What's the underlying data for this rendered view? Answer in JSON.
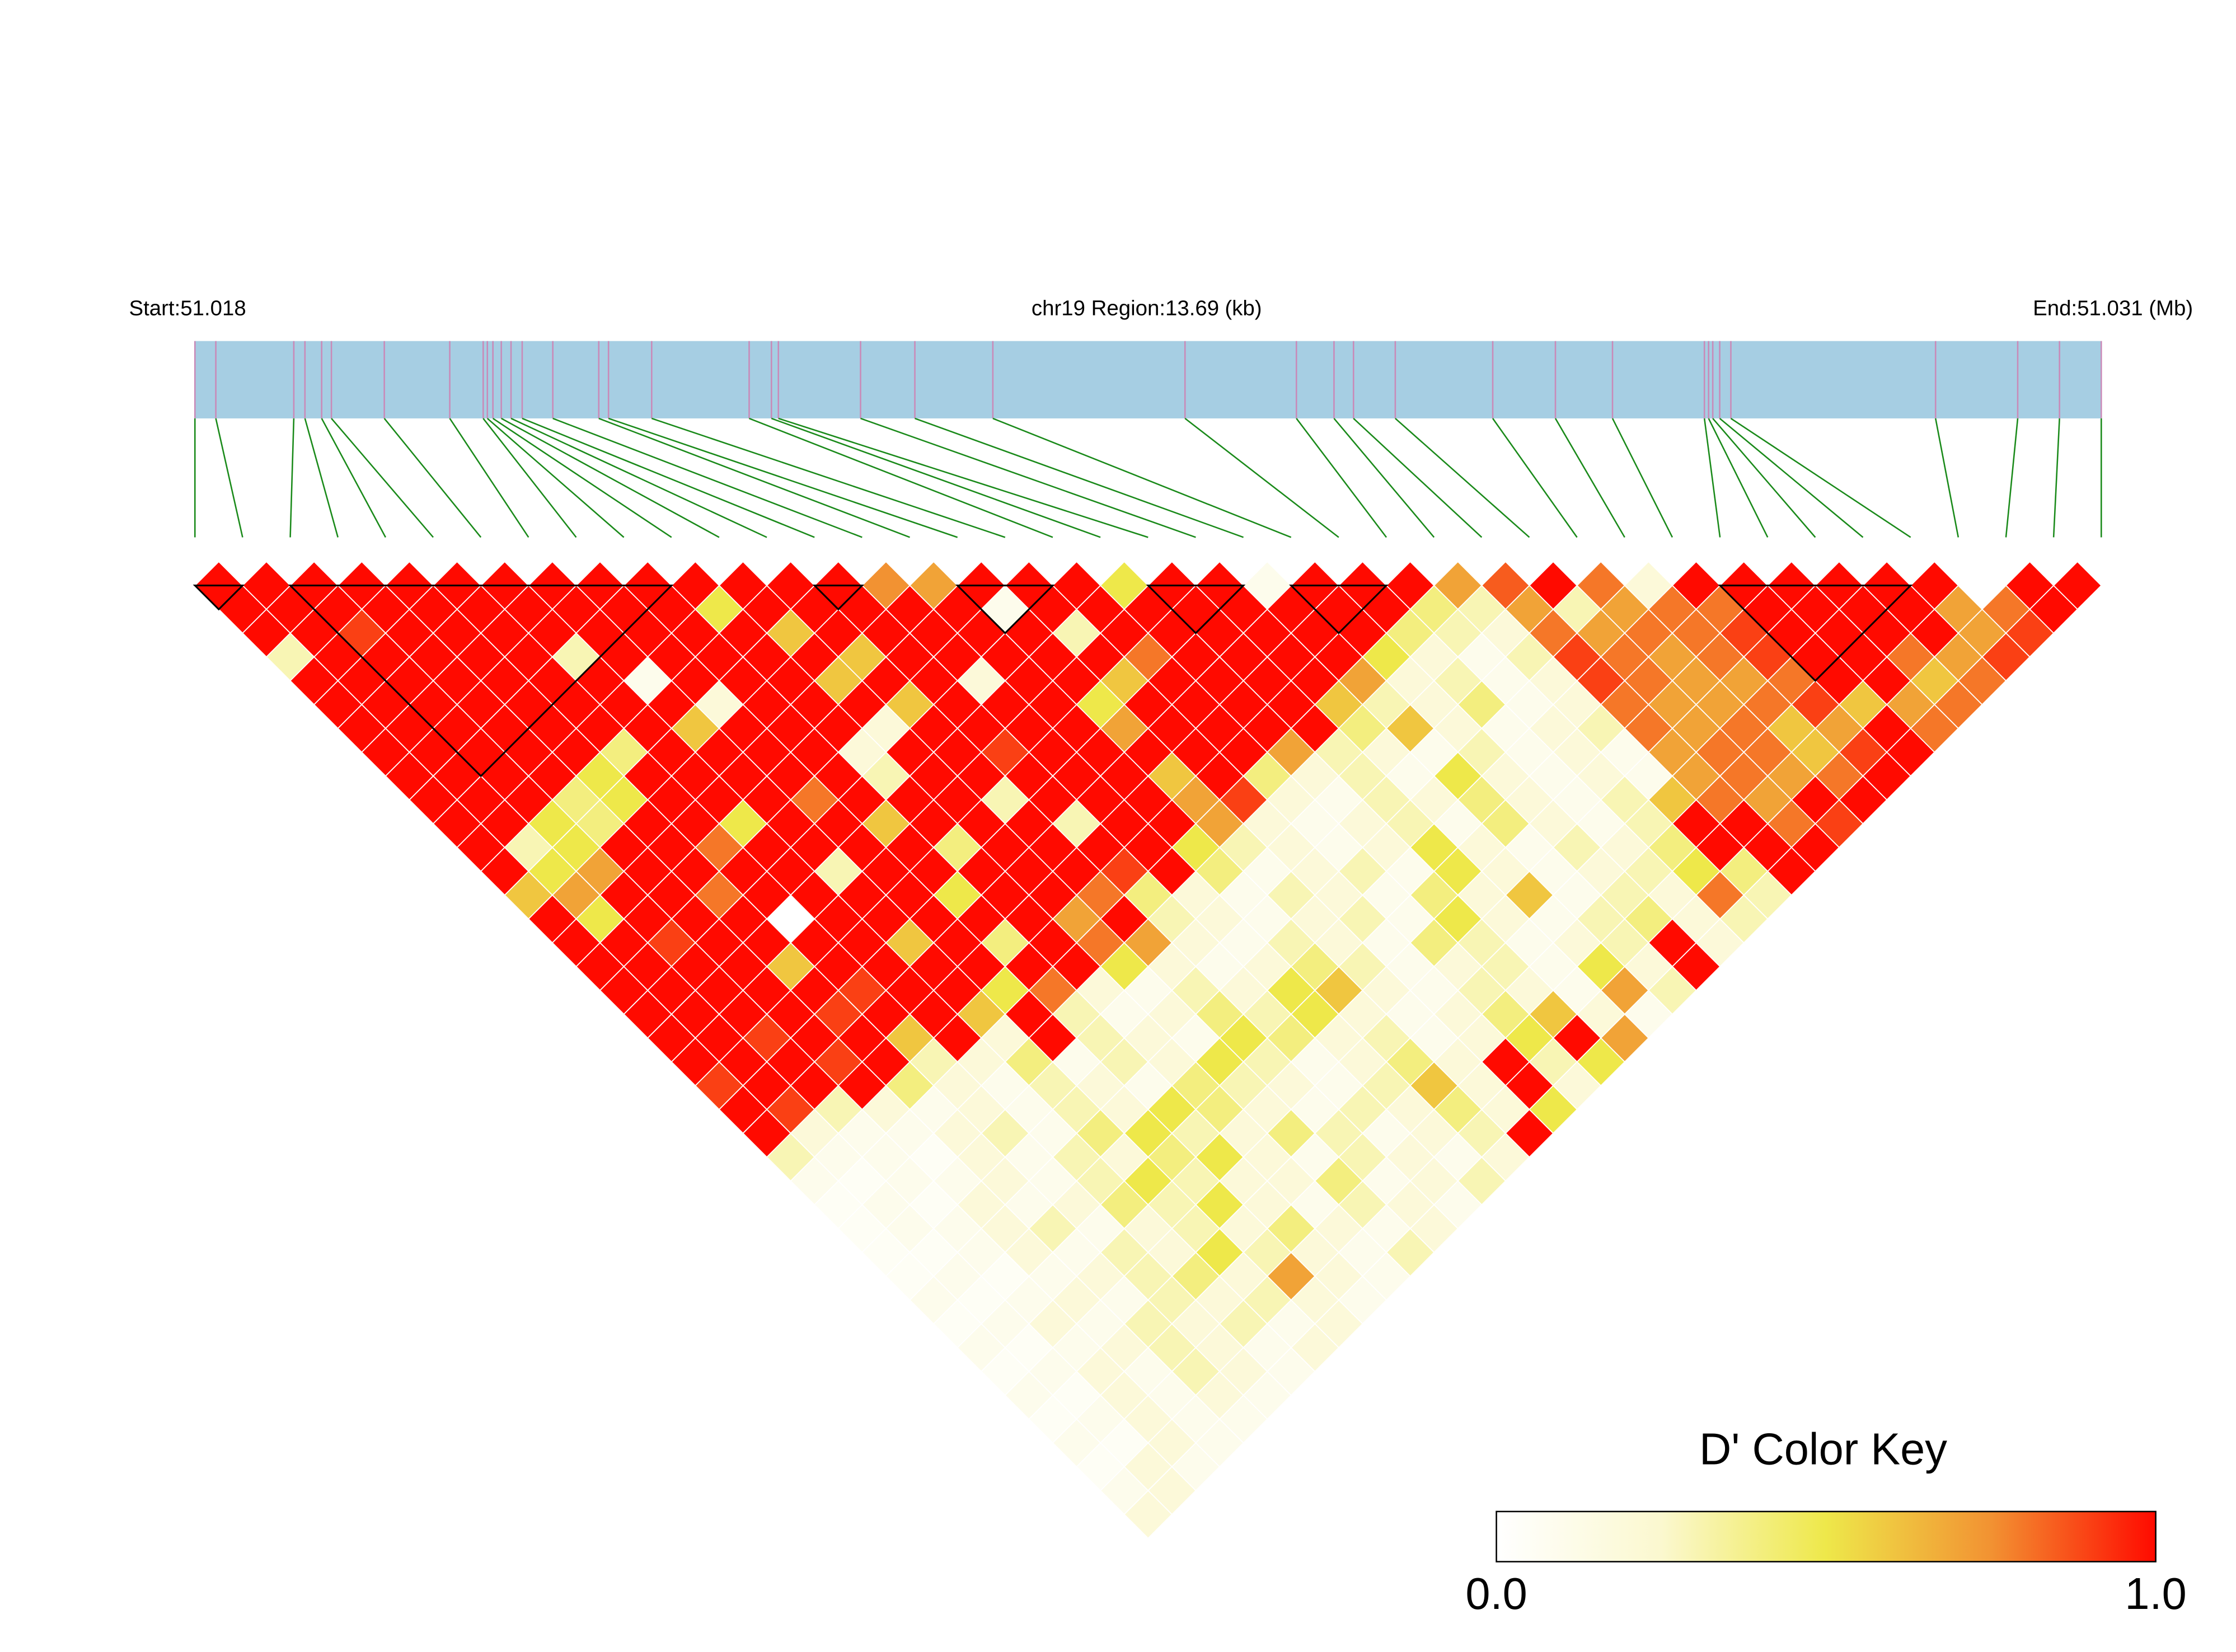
{
  "chart_data": {
    "type": "ld_heatmap",
    "start_label": "Start:51.018",
    "region_prefix": "chr19 Region:",
    "region_kb": 13.69,
    "region_unit": "(kb)",
    "end_label": "End:51.031 (Mb)",
    "bar_color": "#a6cee3",
    "snp_line_color": "#c98ab8",
    "connector_color": "#1a8a1a",
    "block_color": "#000000",
    "snp_positions_kb": [
      0,
      0.15,
      0.71,
      0.79,
      0.91,
      0.98,
      1.36,
      1.83,
      2.07,
      2.1,
      2.14,
      2.2,
      2.27,
      2.35,
      2.57,
      2.9,
      2.97,
      3.28,
      3.98,
      4.14,
      4.19,
      4.78,
      5.17,
      5.73,
      7.11,
      7.91,
      8.18,
      8.32,
      8.62,
      9.32,
      9.77,
      10.18,
      10.84,
      10.87,
      10.9,
      10.95,
      11.03,
      12.5,
      13.09,
      13.39,
      13.69
    ],
    "blocks": [
      [
        0,
        1
      ],
      [
        2,
        10
      ],
      [
        13,
        14
      ],
      [
        16,
        18
      ],
      [
        20,
        22
      ],
      [
        23,
        25
      ],
      [
        32,
        36
      ]
    ],
    "dprime": [
      [
        1,
        1,
        1,
        1,
        1,
        1,
        1,
        1,
        1,
        1,
        1,
        1,
        1,
        1,
        0.75,
        0.7,
        1,
        1,
        1,
        0.5,
        1,
        1,
        0.1,
        1,
        1,
        1,
        0.7,
        0.85,
        1,
        0.8,
        0.2,
        1,
        1,
        1,
        1,
        1,
        1,
        0,
        1,
        1
      ],
      [
        1,
        1,
        1,
        1,
        1,
        1,
        1,
        1,
        1,
        1,
        0.5,
        1,
        1,
        1,
        1,
        1,
        0.1,
        1,
        1,
        1,
        1,
        1,
        1,
        1,
        1,
        0.4,
        0.3,
        0.7,
        0.3,
        0.7,
        0.8,
        0.8,
        1,
        1,
        1,
        1,
        0.7,
        0.8,
        1
      ],
      [
        1,
        1,
        0.9,
        1,
        1,
        1,
        1,
        1,
        1,
        1,
        1,
        0.6,
        1,
        1,
        1,
        1,
        1,
        0.3,
        1,
        1,
        1,
        1,
        1,
        1,
        0.4,
        0.3,
        0.2,
        0.8,
        0.7,
        0.8,
        0.8,
        0.9,
        1,
        1,
        1,
        1,
        0.7,
        0.9
      ],
      [
        0.3,
        1,
        1,
        1,
        1,
        1,
        0.3,
        1,
        1,
        1,
        1,
        1,
        0.6,
        1,
        1,
        1,
        1,
        1,
        0.8,
        1,
        1,
        1,
        1,
        0.5,
        0.2,
        0.1,
        0.3,
        0.9,
        0.8,
        0.7,
        0.8,
        0.9,
        1,
        1,
        0.8,
        0.7,
        0.9
      ],
      [
        1,
        1,
        1,
        1,
        1,
        1,
        1,
        0.1,
        1,
        1,
        1,
        0.6,
        1,
        1,
        0.2,
        1,
        1,
        0.6,
        1,
        1,
        1,
        1,
        0.7,
        0.2,
        0.3,
        0.1,
        0.2,
        0.9,
        0.8,
        0.7,
        0.7,
        0.8,
        1,
        1,
        0.6,
        0.8
      ],
      [
        1,
        1,
        1,
        1,
        1,
        1,
        1,
        1,
        0.2,
        1,
        1,
        1,
        0.6,
        1,
        1,
        1,
        0.5,
        1,
        1,
        1,
        1,
        0.6,
        0.3,
        0.2,
        0.4,
        0.1,
        0.2,
        0.8,
        0.7,
        0.7,
        0.8,
        0.9,
        0.6,
        0.7,
        0.8
      ],
      [
        1,
        1,
        1,
        1,
        1,
        1,
        1,
        0.6,
        1,
        1,
        1,
        0.2,
        1,
        1,
        1,
        1,
        0.7,
        1,
        1,
        1,
        1,
        0.4,
        0.6,
        0.2,
        0.1,
        0.2,
        0.3,
        0.8,
        0.7,
        0.8,
        0.6,
        0.7,
        1,
        0.8
      ],
      [
        1,
        1,
        1,
        1,
        1,
        0.4,
        1,
        1,
        1,
        1,
        0.2,
        1,
        1,
        0.9,
        1,
        1,
        1,
        1,
        1,
        0.7,
        0.3,
        0.2,
        0.1,
        0.3,
        0.1,
        0.2,
        0.1,
        0.7,
        0.8,
        0.8,
        0.6,
        0.9,
        1
      ],
      [
        1,
        1,
        1,
        1,
        0.5,
        1,
        1,
        1,
        1,
        1,
        0.3,
        1,
        1,
        1,
        1,
        1,
        0.6,
        1,
        0.4,
        0.2,
        0.3,
        0.1,
        0.5,
        0.2,
        0.1,
        0.2,
        0.1,
        0.7,
        0.8,
        0.7,
        0.8,
        1
      ],
      [
        1,
        1,
        1,
        0.4,
        0.5,
        1,
        1,
        1,
        0.8,
        1,
        1,
        1,
        0.3,
        1,
        1,
        1,
        0.7,
        0.9,
        0.2,
        0.1,
        0.3,
        0.2,
        0.4,
        0.2,
        0.1,
        0.3,
        0.6,
        0.8,
        0.7,
        1,
        1
      ],
      [
        1,
        1,
        0.5,
        0.4,
        1,
        1,
        0.5,
        1,
        1,
        0.6,
        1,
        1,
        1,
        0.3,
        1,
        1,
        0.7,
        0.2,
        0.1,
        0.2,
        0.3,
        0.1,
        0.4,
        0.2,
        0.1,
        0.3,
        1,
        1,
        0.8,
        0.9
      ],
      [
        1,
        0.3,
        0.5,
        1,
        1,
        0.8,
        1,
        1,
        1,
        1,
        0.4,
        1,
        1,
        1,
        1,
        0.5,
        0.3,
        0.2,
        0.1,
        0.2,
        0.5,
        0.2,
        0.1,
        0.3,
        0.2,
        0.4,
        1,
        1,
        1
      ],
      [
        1,
        0.5,
        0.7,
        1,
        1,
        1,
        1,
        0.3,
        1,
        1,
        1,
        1,
        1,
        0.9,
        1,
        0.4,
        0.1,
        0.2,
        0.3,
        0.1,
        0.5,
        0.2,
        0.1,
        0.2,
        0.3,
        0.5,
        0.4,
        1
      ],
      [
        0.6,
        0.7,
        1,
        1,
        0.8,
        1,
        1,
        1,
        1,
        0.5,
        1,
        1,
        0.8,
        0.4,
        0.2,
        0.1,
        0.3,
        0.2,
        0.1,
        0.4,
        0.2,
        0.6,
        0.1,
        0.3,
        0.2,
        0.8,
        0.3
      ],
      [
        1,
        0.5,
        1,
        1,
        1,
        0,
        1,
        1,
        1,
        1,
        1,
        0.7,
        1,
        0.3,
        0.2,
        0.1,
        0.2,
        0.3,
        0.1,
        0.5,
        0.2,
        0.1,
        0.3,
        0.4,
        0.2,
        0.3
      ],
      [
        1,
        1,
        0.9,
        1,
        1,
        1,
        1,
        0.6,
        1,
        0.4,
        1,
        0.8,
        0.7,
        0.2,
        0.1,
        0.3,
        0.2,
        0.1,
        0.4,
        0.3,
        0.1,
        0.2,
        0.3,
        1,
        0.2
      ],
      [
        1,
        1,
        1,
        1,
        0.6,
        1,
        1,
        1,
        1,
        1,
        1,
        0.5,
        0.2,
        0.1,
        0.2,
        0.4,
        0.3,
        0.1,
        0.2,
        0.3,
        0.1,
        0.5,
        0.2,
        1
      ],
      [
        1,
        1,
        1,
        1,
        1,
        0.9,
        1,
        1,
        0.5,
        0.8,
        0.2,
        0.1,
        0.3,
        0.2,
        0.5,
        0.6,
        0.2,
        0.1,
        0.3,
        0.2,
        0.1,
        0.7,
        0.3
      ],
      [
        1,
        1,
        1,
        1,
        0.9,
        1,
        1,
        0.6,
        1,
        0.3,
        0.1,
        0.2,
        0.4,
        0.3,
        0.5,
        0.2,
        0.1,
        0.2,
        0.4,
        0.6,
        0.2,
        0.1
      ],
      [
        1,
        1,
        0.9,
        1,
        1,
        0.6,
        1,
        0.2,
        1,
        0.3,
        0.2,
        0.1,
        0.5,
        0.4,
        0.2,
        0.3,
        0.1,
        0.2,
        0.5,
        1,
        0.7
      ],
      [
        1,
        1,
        1,
        0.9,
        1,
        0.3,
        0.2,
        0.4,
        0.1,
        0.3,
        0.2,
        0.5,
        0.3,
        0.1,
        0.2,
        0.4,
        0.2,
        1,
        0.3,
        0.5
      ],
      [
        0.9,
        1,
        1,
        1,
        0.4,
        0.2,
        0.1,
        0.3,
        0.2,
        0.1,
        0.4,
        0.3,
        0.2,
        0.1,
        0.3,
        0.6,
        0.2,
        1,
        0.2
      ],
      [
        1,
        0.9,
        0.3,
        0.2,
        0.1,
        0.2,
        0.1,
        0.3,
        0.2,
        0.5,
        0.4,
        0.2,
        0.1,
        0.3,
        0.2,
        0.4,
        0.2,
        0.5
      ],
      [
        1,
        0.2,
        0.1,
        0.1,
        0.2,
        0.3,
        0.1,
        0.4,
        0.5,
        0.3,
        0.2,
        0.4,
        0.3,
        0.1,
        0.2,
        0.3,
        1
      ],
      [
        0.3,
        0.1,
        0.1,
        0.05,
        0.2,
        0.1,
        0.3,
        0.2,
        0.4,
        0.5,
        0.2,
        0.1,
        0.3,
        0.2,
        0.1,
        0.2
      ],
      [
        0.1,
        0.05,
        0.1,
        0.1,
        0.2,
        0.1,
        0.3,
        0.5,
        0.3,
        0.2,
        0.2,
        0.4,
        0.1,
        0.2,
        0.3
      ],
      [
        0.05,
        0.1,
        0.05,
        0.2,
        0.1,
        0.2,
        0.4,
        0.3,
        0.5,
        0.2,
        0.1,
        0.3,
        0.2,
        0.1
      ],
      [
        0.05,
        0.1,
        0.1,
        0.2,
        0.3,
        0.1,
        0.2,
        0.3,
        0.2,
        0.4,
        0.2,
        0.1,
        0.2
      ],
      [
        0.05,
        0.05,
        0.1,
        0.2,
        0.1,
        0.3,
        0.2,
        0.5,
        0.3,
        0.2,
        0.1,
        0.3
      ],
      [
        0.05,
        0.1,
        0.05,
        0.1,
        0.2,
        0.3,
        0.4,
        0.2,
        0.7,
        0.2,
        0.1
      ],
      [
        0.1,
        0.05,
        0.1,
        0.2,
        0.1,
        0.3,
        0.2,
        0.3,
        0.2,
        0.1
      ],
      [
        0.05,
        0.1,
        0.2,
        0.1,
        0.3,
        0.2,
        0.3,
        0.1,
        0.2
      ],
      [
        0.1,
        0.05,
        0.1,
        0.2,
        0.3,
        0.2,
        0.1,
        0.2
      ],
      [
        0.05,
        0.1,
        0.2,
        0.1,
        0.3,
        0.2,
        0.1
      ],
      [
        0.1,
        0.05,
        0.2,
        0.1,
        0.2,
        0.1
      ],
      [
        0.05,
        0.1,
        0.2,
        0.1,
        0.1
      ],
      [
        0.1,
        0.05,
        0.2,
        0.1
      ],
      [
        0.05,
        0.2,
        0.1
      ],
      [
        0.1,
        0.2
      ],
      [
        0.2
      ]
    ],
    "color_key": {
      "title": "D' Color Key",
      "colors": [
        "#ffffff",
        "#fbf8cf",
        "#eee84a",
        "#f29232",
        "#ff0a00"
      ],
      "ticks": [
        {
          "value": 0,
          "label": "0.0"
        },
        {
          "value": 1,
          "label": "1.0"
        }
      ]
    }
  }
}
